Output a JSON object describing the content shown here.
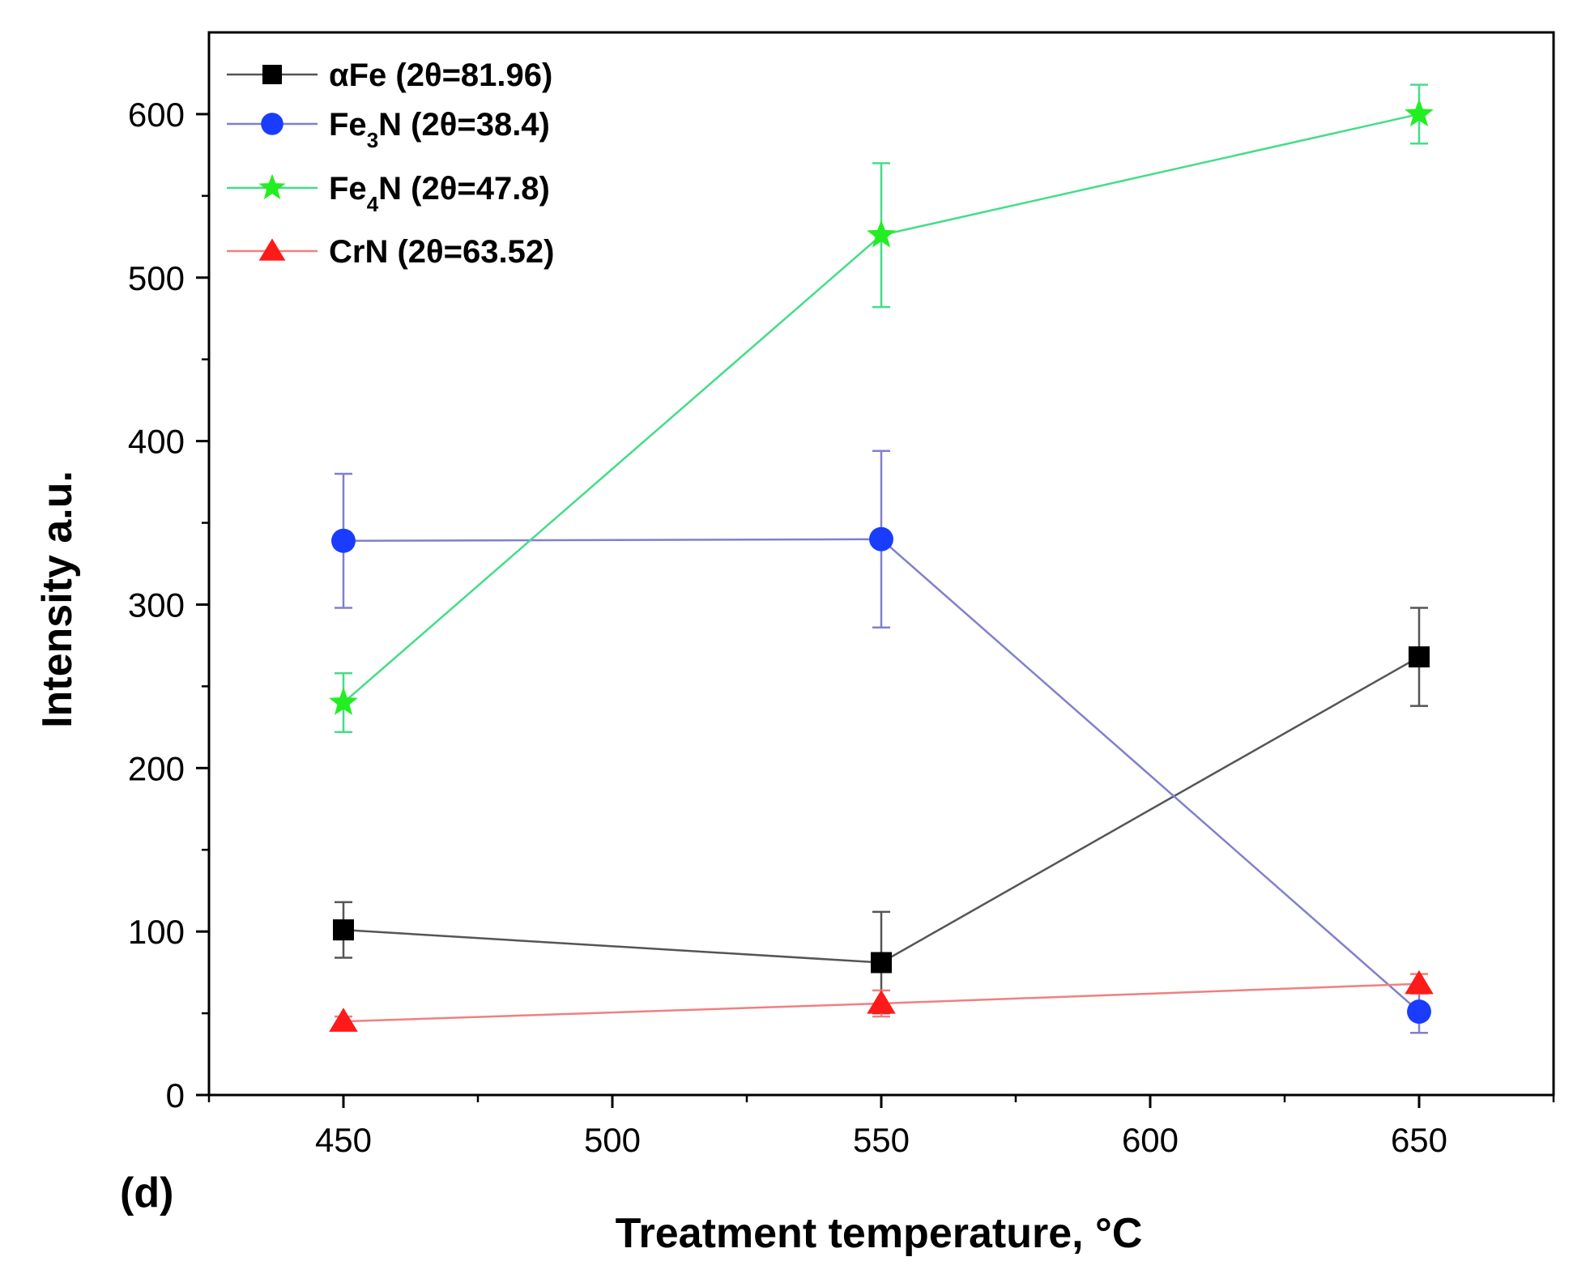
{
  "chart_data": {
    "type": "line",
    "panel_label": "(d)",
    "xlabel": "Treatment temperature, °C",
    "ylabel": "Intensity a.u.",
    "xlim": [
      425,
      675
    ],
    "ylim": [
      0,
      650
    ],
    "x_ticks": [
      450,
      500,
      550,
      600,
      650
    ],
    "y_ticks": [
      0,
      100,
      200,
      300,
      400,
      500,
      600
    ],
    "grid": false,
    "legend_position": "top-left",
    "x": [
      450,
      550,
      650
    ],
    "series": [
      {
        "name": "αFe (2θ=81.96)",
        "marker": "square",
        "color": "#000000",
        "line_color": "#555555",
        "values": [
          101,
          81,
          268
        ],
        "error": [
          17,
          31,
          30
        ]
      },
      {
        "name": "Fe3N (2θ=38.4)",
        "marker": "circle",
        "color": "#1a3cff",
        "line_color": "#8080cc",
        "values": [
          339,
          340,
          51
        ],
        "error": [
          41,
          54,
          13
        ]
      },
      {
        "name": "Fe4N (2θ=47.8)",
        "marker": "star",
        "color": "#22ee22",
        "line_color": "#44dd88",
        "values": [
          240,
          526,
          600
        ],
        "error": [
          18,
          44,
          18
        ]
      },
      {
        "name": "CrN (2θ=63.52)",
        "marker": "triangle",
        "color": "#ff1a1a",
        "line_color": "#f08080",
        "values": [
          45,
          56,
          68
        ],
        "error": [
          3,
          8,
          6
        ]
      }
    ]
  }
}
